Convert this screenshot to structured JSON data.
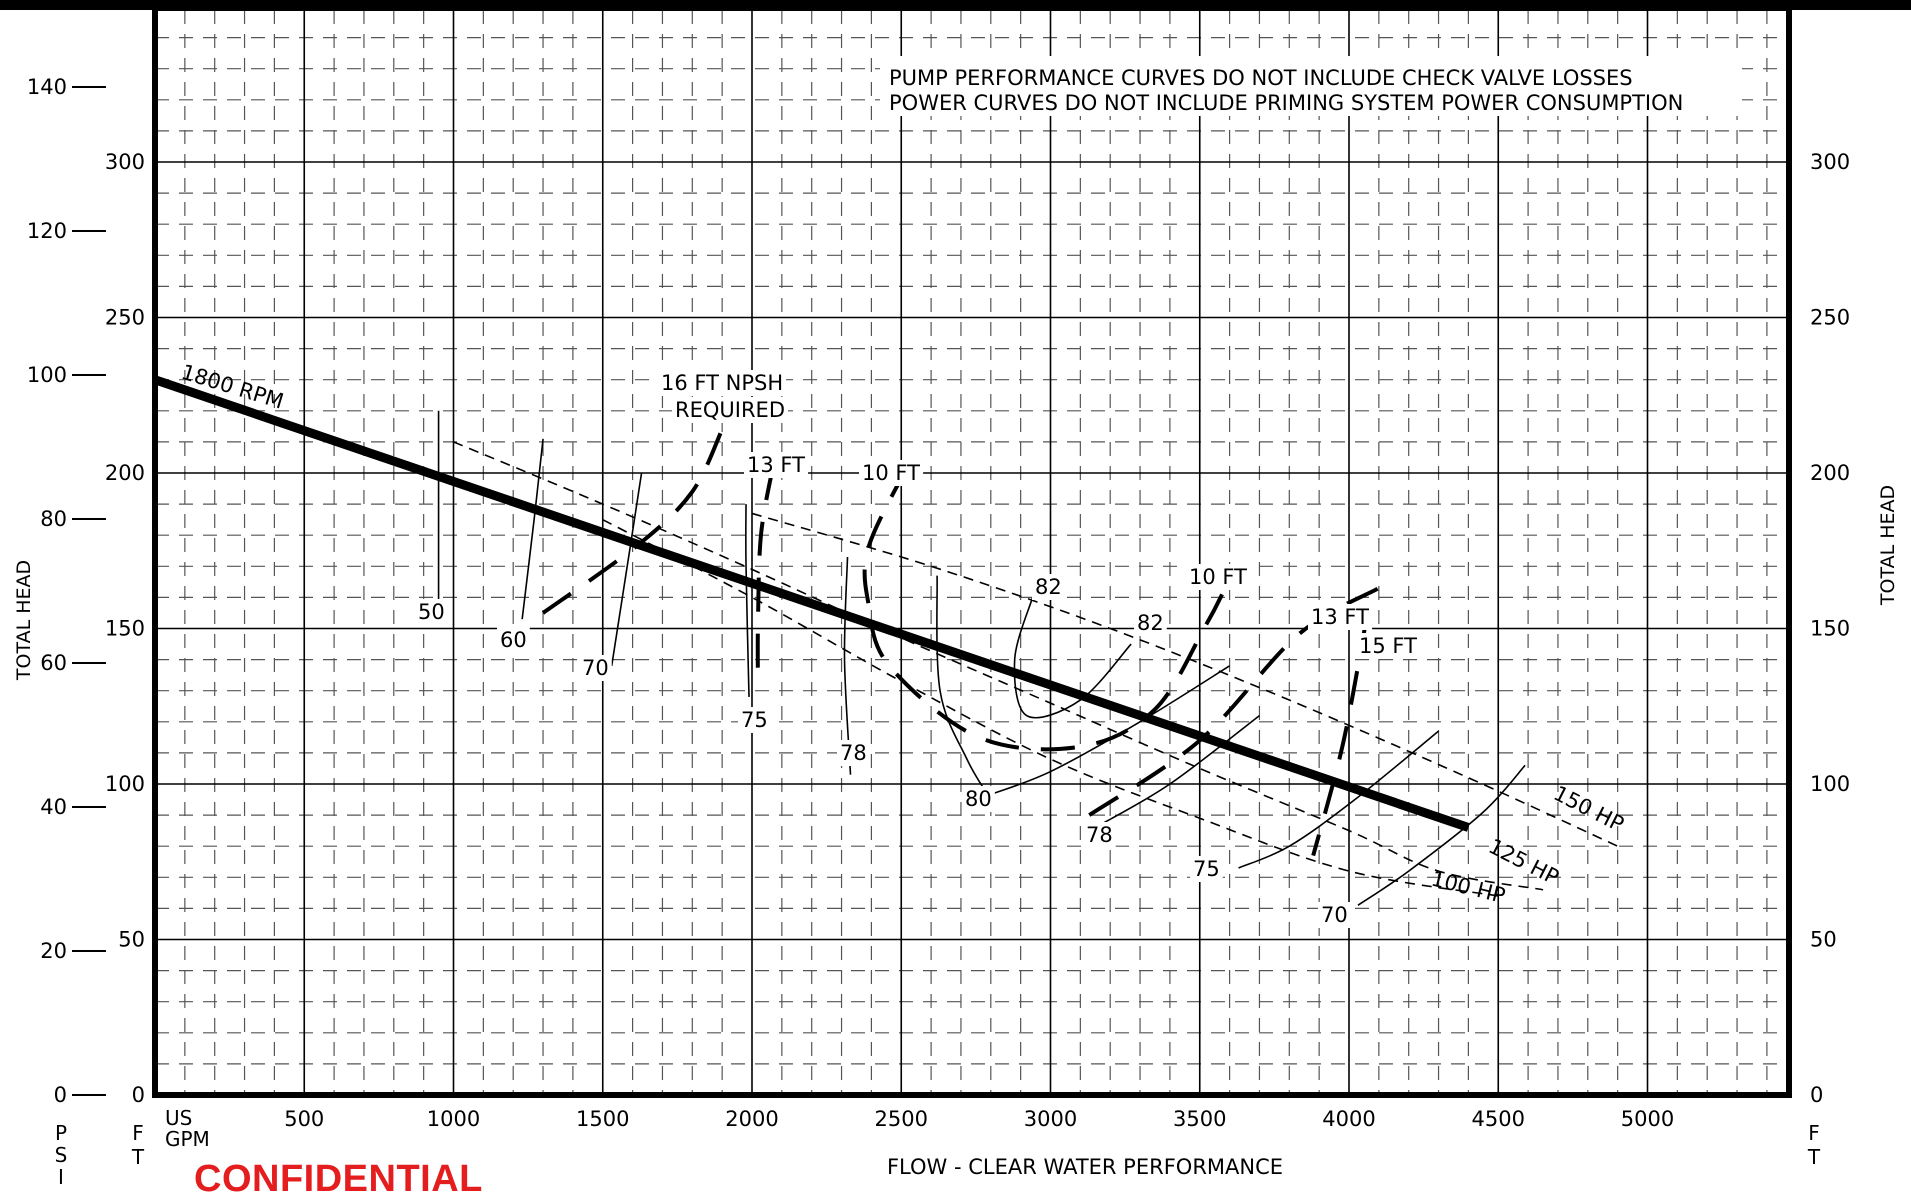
{
  "chart_data": {
    "type": "line",
    "notes": [
      "PUMP PERFORMANCE CURVES DO NOT INCLUDE CHECK VALVE LOSSES",
      "POWER CURVES DO NOT INCLUDE PRIMING SYSTEM POWER CONSUMPTION"
    ],
    "xlabel": "FLOW - CLEAR WATER PERFORMANCE",
    "xunit_lines": [
      "US",
      "GPM"
    ],
    "ylabel": "TOTAL HEAD",
    "psi_label": "PSI",
    "ft_label": "FT",
    "xlim": [
      0,
      5500
    ],
    "ylim": [
      0,
      350
    ],
    "x_ticks": [
      500,
      1000,
      1500,
      2000,
      2500,
      3000,
      3500,
      4000,
      4500,
      5000
    ],
    "ft_ticks": [
      0,
      50,
      100,
      150,
      200,
      250,
      300
    ],
    "psi_ticks": [
      0,
      20,
      40,
      60,
      80,
      100,
      120,
      140
    ],
    "pump_curve": {
      "label": "1800 RPM",
      "points": [
        [
          0,
          230
        ],
        [
          4400,
          86
        ]
      ]
    },
    "power_curves": [
      {
        "label": "150 HP",
        "points": [
          [
            2000,
            187
          ],
          [
            2600,
            170
          ],
          [
            3200,
            150
          ],
          [
            3800,
            127
          ],
          [
            4400,
            102
          ],
          [
            4900,
            80
          ]
        ]
      },
      {
        "label": "125 HP",
        "points": [
          [
            1000,
            210
          ],
          [
            1500,
            190
          ],
          [
            2000,
            169
          ],
          [
            2500,
            147
          ],
          [
            3000,
            126
          ],
          [
            3500,
            105
          ],
          [
            4000,
            85
          ],
          [
            4300,
            72
          ],
          [
            4650,
            66
          ]
        ]
      },
      {
        "label": "100 HP",
        "points": [
          [
            1500,
            185
          ],
          [
            2000,
            160
          ],
          [
            2500,
            133
          ],
          [
            3000,
            108
          ],
          [
            3500,
            89
          ],
          [
            4000,
            72
          ],
          [
            4500,
            64
          ]
        ]
      }
    ],
    "efficiency_labels": [
      "50",
      "60",
      "70",
      "75",
      "78",
      "80",
      "82",
      "82",
      "80",
      "78",
      "75",
      "70"
    ],
    "efficiency_curves": [
      {
        "label": "50",
        "points": [
          [
            950,
            220
          ],
          [
            950,
            153
          ]
        ]
      },
      {
        "label": "60",
        "points": [
          [
            1300,
            211
          ],
          [
            1270,
            185
          ],
          [
            1230,
            153
          ]
        ]
      },
      {
        "label": "70",
        "points": [
          [
            1630,
            200
          ],
          [
            1590,
            175
          ],
          [
            1530,
            138
          ]
        ]
      },
      {
        "label": "75",
        "points": [
          [
            1980,
            190
          ],
          [
            1980,
            170
          ],
          [
            1990,
            128
          ]
        ]
      },
      {
        "label": "78",
        "points": [
          [
            2320,
            173
          ],
          [
            2310,
            140
          ],
          [
            2330,
            103
          ]
        ]
      },
      {
        "label": "80",
        "points": [
          [
            2620,
            167
          ],
          [
            2630,
            130
          ],
          [
            2720,
            108
          ],
          [
            2800,
            95
          ]
        ]
      },
      {
        "label": "82",
        "points": [
          [
            2940,
            160
          ],
          [
            2880,
            140
          ],
          [
            2920,
            122
          ],
          [
            3100,
            127
          ],
          [
            3270,
            145
          ]
        ]
      },
      {
        "label": "80",
        "points": [
          [
            2780,
            96
          ],
          [
            3000,
            104
          ],
          [
            3300,
            120
          ],
          [
            3600,
            138
          ]
        ]
      },
      {
        "label": "78",
        "points": [
          [
            3150,
            86
          ],
          [
            3400,
            100
          ],
          [
            3700,
            122
          ]
        ]
      },
      {
        "label": "75",
        "points": [
          [
            3630,
            73
          ],
          [
            3800,
            80
          ],
          [
            4020,
            95
          ],
          [
            4300,
            117
          ]
        ]
      },
      {
        "label": "70",
        "points": [
          [
            4030,
            61
          ],
          [
            4200,
            72
          ],
          [
            4450,
            91
          ],
          [
            4590,
            106
          ]
        ]
      }
    ],
    "npsh_curves": [
      {
        "label_lines": [
          "16 FT NPSH",
          "REQUIRED"
        ],
        "points": [
          [
            1300,
            155
          ],
          [
            1620,
            177
          ],
          [
            1800,
            194
          ],
          [
            1900,
            214
          ]
        ]
      },
      {
        "label": "13 FT",
        "points": [
          [
            2070,
            202
          ],
          [
            2030,
            180
          ],
          [
            2020,
            152
          ],
          [
            2020,
            131
          ]
        ]
      },
      {
        "label": "10 FT",
        "points": [
          [
            2520,
            202
          ],
          [
            2390,
            176
          ],
          [
            2390,
            158
          ],
          [
            2460,
            138
          ],
          [
            2760,
            115
          ],
          [
            3100,
            112
          ],
          [
            3350,
            124
          ],
          [
            3520,
            151
          ],
          [
            3580,
            162
          ]
        ]
      },
      {
        "label": "13 FT",
        "points": [
          [
            3130,
            90
          ],
          [
            3500,
            114
          ],
          [
            3830,
            148
          ],
          [
            4100,
            163
          ]
        ]
      },
      {
        "label": "15 FT",
        "points": [
          [
            4060,
            154
          ],
          [
            3980,
            113
          ],
          [
            3880,
            77
          ]
        ]
      }
    ],
    "npsh_labels": [
      "16 FT NPSH",
      "REQUIRED",
      "13 FT",
      "10 FT",
      "10 FT",
      "13 FT",
      "15 FT"
    ],
    "hp_labels": [
      "150 HP",
      "125 HP",
      "100 HP"
    ]
  },
  "stamp": {
    "text": "CONFIDENTIAL",
    "color": "#e41e1e"
  }
}
